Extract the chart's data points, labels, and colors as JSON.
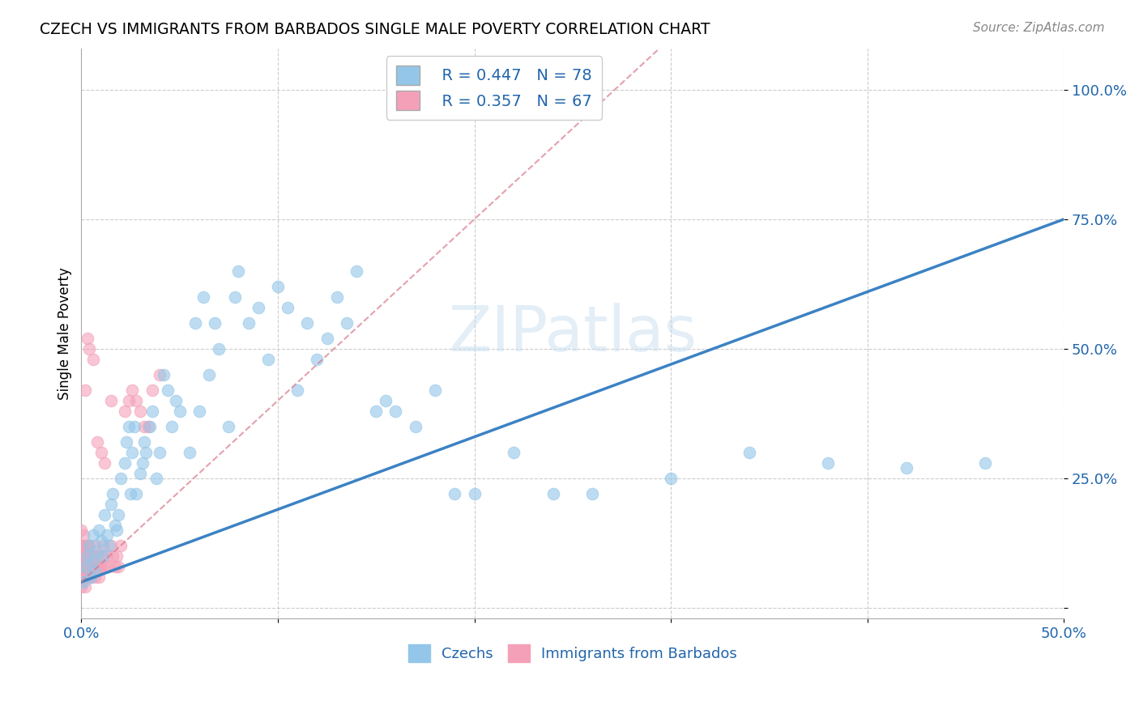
{
  "title": "CZECH VS IMMIGRANTS FROM BARBADOS SINGLE MALE POVERTY CORRELATION CHART",
  "source": "Source: ZipAtlas.com",
  "ylabel": "Single Male Poverty",
  "xlim": [
    0.0,
    0.5
  ],
  "ylim": [
    -0.02,
    1.08
  ],
  "xticks": [
    0.0,
    0.1,
    0.2,
    0.3,
    0.4,
    0.5
  ],
  "xticklabels": [
    "0.0%",
    "",
    "",
    "",
    "",
    "50.0%"
  ],
  "ytick_positions": [
    0.0,
    0.25,
    0.5,
    0.75,
    1.0
  ],
  "yticklabels": [
    "",
    "25.0%",
    "50.0%",
    "75.0%",
    "100.0%"
  ],
  "legend_r1": "R = 0.447",
  "legend_n1": "N = 78",
  "legend_r2": "R = 0.357",
  "legend_n2": "N = 67",
  "color_czech": "#93c6e8",
  "color_barbados": "#f4a0b8",
  "color_trendline_czech": "#3b82c4",
  "color_trendline_barbados": "#d9788a",
  "watermark": "ZIPatlas",
  "czechs_x": [
    0.001,
    0.002,
    0.003,
    0.004,
    0.005,
    0.006,
    0.006,
    0.007,
    0.008,
    0.009,
    0.01,
    0.011,
    0.012,
    0.013,
    0.014,
    0.015,
    0.016,
    0.017,
    0.018,
    0.019,
    0.02,
    0.022,
    0.023,
    0.024,
    0.025,
    0.026,
    0.027,
    0.028,
    0.03,
    0.031,
    0.032,
    0.033,
    0.035,
    0.036,
    0.038,
    0.04,
    0.042,
    0.044,
    0.046,
    0.048,
    0.05,
    0.055,
    0.058,
    0.06,
    0.062,
    0.065,
    0.068,
    0.07,
    0.075,
    0.078,
    0.08,
    0.085,
    0.09,
    0.095,
    0.1,
    0.105,
    0.11,
    0.115,
    0.12,
    0.125,
    0.13,
    0.135,
    0.14,
    0.15,
    0.155,
    0.16,
    0.17,
    0.18,
    0.19,
    0.2,
    0.22,
    0.24,
    0.26,
    0.3,
    0.34,
    0.38,
    0.42,
    0.46
  ],
  "czechs_y": [
    0.05,
    0.08,
    0.1,
    0.12,
    0.06,
    0.09,
    0.14,
    0.07,
    0.11,
    0.15,
    0.13,
    0.1,
    0.18,
    0.14,
    0.12,
    0.2,
    0.22,
    0.16,
    0.15,
    0.18,
    0.25,
    0.28,
    0.32,
    0.35,
    0.22,
    0.3,
    0.35,
    0.22,
    0.26,
    0.28,
    0.32,
    0.3,
    0.35,
    0.38,
    0.25,
    0.3,
    0.45,
    0.42,
    0.35,
    0.4,
    0.38,
    0.3,
    0.55,
    0.38,
    0.6,
    0.45,
    0.55,
    0.5,
    0.35,
    0.6,
    0.65,
    0.55,
    0.58,
    0.48,
    0.62,
    0.58,
    0.42,
    0.55,
    0.48,
    0.52,
    0.6,
    0.55,
    0.65,
    0.38,
    0.4,
    0.38,
    0.35,
    0.42,
    0.22,
    0.22,
    0.3,
    0.22,
    0.22,
    0.25,
    0.3,
    0.28,
    0.27,
    0.28
  ],
  "barbados_x": [
    0.0,
    0.0,
    0.0,
    0.0,
    0.0,
    0.0,
    0.0,
    0.0,
    0.0,
    0.0,
    0.001,
    0.001,
    0.001,
    0.001,
    0.001,
    0.002,
    0.002,
    0.002,
    0.002,
    0.002,
    0.003,
    0.003,
    0.003,
    0.003,
    0.004,
    0.004,
    0.004,
    0.005,
    0.005,
    0.005,
    0.006,
    0.006,
    0.007,
    0.007,
    0.008,
    0.008,
    0.009,
    0.009,
    0.01,
    0.01,
    0.011,
    0.012,
    0.013,
    0.014,
    0.015,
    0.016,
    0.017,
    0.018,
    0.019,
    0.02,
    0.022,
    0.024,
    0.026,
    0.028,
    0.03,
    0.032,
    0.034,
    0.036,
    0.04,
    0.015,
    0.01,
    0.012,
    0.008,
    0.006,
    0.004,
    0.003,
    0.002
  ],
  "barbados_y": [
    0.05,
    0.07,
    0.08,
    0.1,
    0.12,
    0.06,
    0.04,
    0.09,
    0.11,
    0.15,
    0.08,
    0.12,
    0.06,
    0.1,
    0.14,
    0.08,
    0.12,
    0.06,
    0.1,
    0.04,
    0.12,
    0.08,
    0.06,
    0.1,
    0.08,
    0.12,
    0.06,
    0.1,
    0.08,
    0.06,
    0.1,
    0.08,
    0.12,
    0.06,
    0.08,
    0.1,
    0.06,
    0.08,
    0.1,
    0.08,
    0.12,
    0.08,
    0.1,
    0.08,
    0.12,
    0.1,
    0.08,
    0.1,
    0.08,
    0.12,
    0.38,
    0.4,
    0.42,
    0.4,
    0.38,
    0.35,
    0.35,
    0.42,
    0.45,
    0.4,
    0.3,
    0.28,
    0.32,
    0.48,
    0.5,
    0.52,
    0.42
  ]
}
